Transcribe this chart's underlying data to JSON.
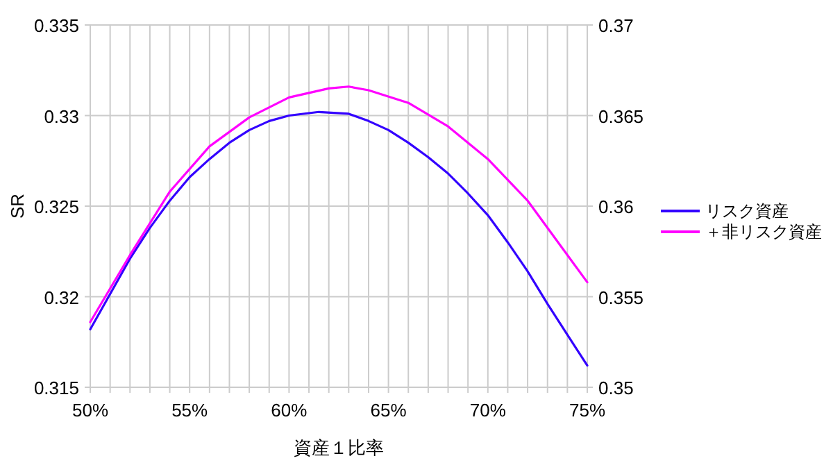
{
  "chart_data": {
    "type": "line",
    "xlabel": "資産１比率",
    "ylabel": "SR",
    "x": [
      50,
      52,
      53,
      54,
      55,
      56,
      57,
      58,
      59,
      60,
      61.5,
      63,
      64,
      65,
      66,
      67,
      68,
      69,
      70,
      71,
      72,
      73,
      74,
      75
    ],
    "series": [
      {
        "name": "リスク資産",
        "color": "#3300ff",
        "values": [
          0.3182,
          0.3221,
          0.3238,
          0.3253,
          0.3266,
          0.3276,
          0.3285,
          0.3292,
          0.3297,
          0.33,
          0.3302,
          0.3301,
          0.3297,
          0.3292,
          0.3285,
          0.3277,
          0.3268,
          0.3257,
          0.3245,
          0.323,
          0.3214,
          0.3196,
          0.3179,
          0.3162
        ]
      },
      {
        "name": "＋非リスク資産",
        "color": "#ff00ff",
        "axis": "y2",
        "x": [
          50,
          52,
          54,
          56,
          58,
          60,
          62,
          63,
          64,
          66,
          68,
          70,
          72,
          74,
          75
        ],
        "values": [
          0.3536,
          0.3573,
          0.3608,
          0.3633,
          0.3649,
          0.366,
          0.3665,
          0.3666,
          0.3664,
          0.3657,
          0.3644,
          0.3626,
          0.3603,
          0.3573,
          0.3558
        ]
      }
    ],
    "xlim": [
      50,
      75
    ],
    "xticks": [
      {
        "value": 50,
        "label": "50%"
      },
      {
        "value": 51,
        "label": null
      },
      {
        "value": 52,
        "label": null
      },
      {
        "value": 53,
        "label": null
      },
      {
        "value": 54,
        "label": null
      },
      {
        "value": 55,
        "label": "55%"
      },
      {
        "value": 56,
        "label": null
      },
      {
        "value": 57,
        "label": null
      },
      {
        "value": 58,
        "label": null
      },
      {
        "value": 59,
        "label": null
      },
      {
        "value": 60,
        "label": "60%"
      },
      {
        "value": 61,
        "label": null
      },
      {
        "value": 62,
        "label": null
      },
      {
        "value": 63,
        "label": null
      },
      {
        "value": 64,
        "label": null
      },
      {
        "value": 65,
        "label": "65%"
      },
      {
        "value": 66,
        "label": null
      },
      {
        "value": 67,
        "label": null
      },
      {
        "value": 68,
        "label": null
      },
      {
        "value": 69,
        "label": null
      },
      {
        "value": 70,
        "label": "70%"
      },
      {
        "value": 71,
        "label": null
      },
      {
        "value": 72,
        "label": null
      },
      {
        "value": 73,
        "label": null
      },
      {
        "value": 74,
        "label": null
      },
      {
        "value": 75,
        "label": "75%"
      }
    ],
    "ylim": [
      0.315,
      0.335
    ],
    "yticks": [
      0.315,
      0.32,
      0.325,
      0.33,
      0.335
    ],
    "y2lim": [
      0.35,
      0.37
    ],
    "y2ticks": [
      0.35,
      0.355,
      0.36,
      0.365,
      0.37
    ],
    "grid": true,
    "legend": "right",
    "marker": "none",
    "line_style": "solid"
  }
}
